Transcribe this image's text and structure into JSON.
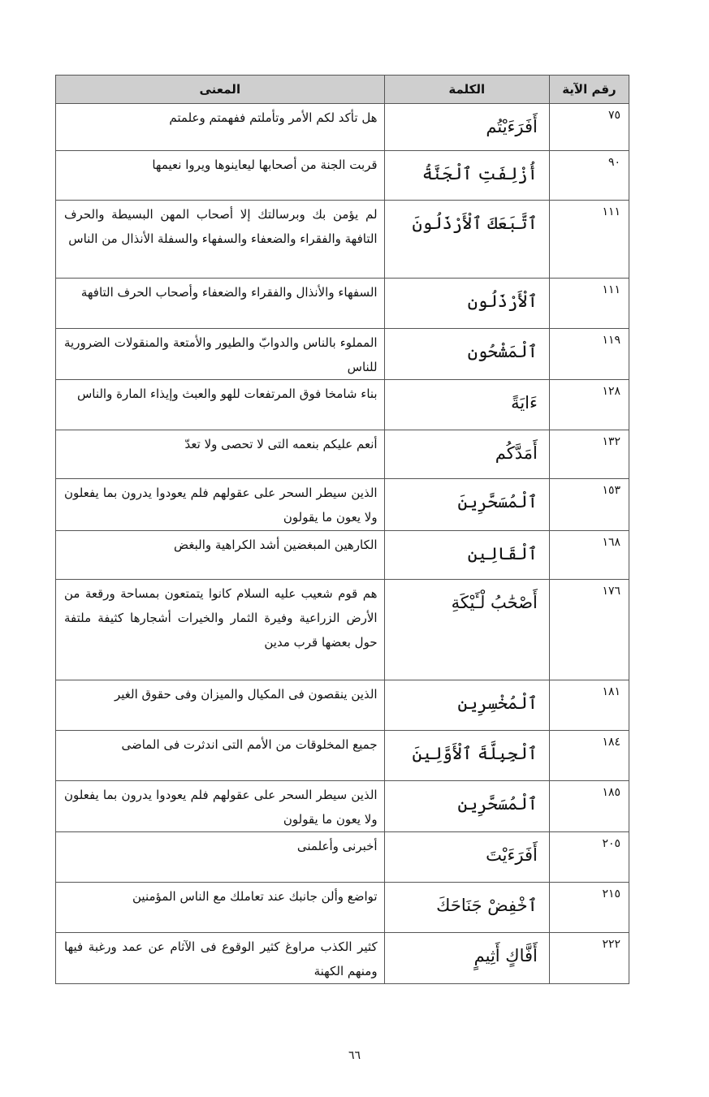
{
  "table": {
    "headers": {
      "verse_number": "رقم الآية",
      "word": "الكلمة",
      "meaning": "المعنى"
    },
    "rows": [
      {
        "verse": "٧٥",
        "word": "أَفَرَءَيْتُم",
        "meaning": "هل تأكد لكم الأمر وتأملتم ففهمتم وعلمتم"
      },
      {
        "verse": "٩٠",
        "word": "أُزْلِفَتِ ٱلْجَنَّةُ",
        "meaning": "قربت الجنة من أصحابها ليعاينوها ويروا نعيمها"
      },
      {
        "verse": "١١١",
        "word": "ٱتَّبَعَكَ ٱلْأَرْذَلُونَ",
        "meaning": "لم يؤمن بك وبرسالتك إلا أصحاب المهن البسيطة والحرف التافهة والفقراء والضعفاء والسفهاء والسفلة الأنذال من الناس"
      },
      {
        "verse": "١١١",
        "word": "ٱلْأَرْذَلُون",
        "meaning": "السفهاء والأنذال والفقراء والضعفاء وأصحاب الحرف التافهة"
      },
      {
        "verse": "١١٩",
        "word": "ٱلْمَشْحُون",
        "meaning": "المملوء بالناس والدوابّ والطيور والأمتعة والمنقولات الضرورية للناس"
      },
      {
        "verse": "١٢٨",
        "word": "ءَايَةً",
        "meaning": "بناء شامخا فوق المرتفعات للهو والعبث وإيذاء المارة والناس"
      },
      {
        "verse": "١٣٢",
        "word": "أَمَدَّكُم",
        "meaning": "أنعم عليكم بنعمه التى لا تحصى ولا تعدّ"
      },
      {
        "verse": "١٥٣",
        "word": "ٱلْمُسَحَّرِينَ",
        "meaning": "الذين سيطر السحر على عقولهم فلم يعودوا يدرون بما يفعلون ولا يعون ما يقولون"
      },
      {
        "verse": "١٦٨",
        "word": "ٱلْقَالِين",
        "meaning": "الكارهين المبغضين أشد الكراهية والبغض"
      },
      {
        "verse": "١٧٦",
        "word": "أَصْحَٰبُ لْـَٔيْكَةِ",
        "meaning": "هم قوم شعيب عليه السلام كانوا يتمتعون بمساحة ورقعة من الأرض الزراعية وفيرة الثمار والخيرات أشجارها كثيفة ملتفة حول بعضها قرب مدين"
      },
      {
        "verse": "١٨١",
        "word": "ٱلْمُخْسِرِين",
        "meaning": "الذين ينقصون فى المكيال والميزان وفى حقوق الغير"
      },
      {
        "verse": "١٨٤",
        "word": "ٱلْجِبِلَّةَ ٱلْأَوَّلِينَ",
        "meaning": "جميع المخلوقات من الأمم التى اندثرت فى الماضى"
      },
      {
        "verse": "١٨٥",
        "word": "ٱلْمُسَحَّرِين",
        "meaning": "الذين سيطر السحر على عقولهم فلم يعودوا يدرون بما يفعلون ولا يعون ما يقولون"
      },
      {
        "verse": "٢٠٥",
        "word": "أَفَرَءَيْتَ",
        "meaning": "أخبرنى وأعلمنى"
      },
      {
        "verse": "٢١٥",
        "word": "ٱخْفِضْ جَنَاحَكَ",
        "meaning": "تواضع وألن جانبك عند تعاملك مع الناس المؤمنين"
      },
      {
        "verse": "٢٢٢",
        "word": "أَفَّاكٍ أَثِيمٍ",
        "meaning": "كثير الكذب مراوغ كثير الوقوع فى الآثام عن عمد ورغبة فيها ومنهم الكهنة"
      }
    ]
  },
  "page_number": "٦٦"
}
